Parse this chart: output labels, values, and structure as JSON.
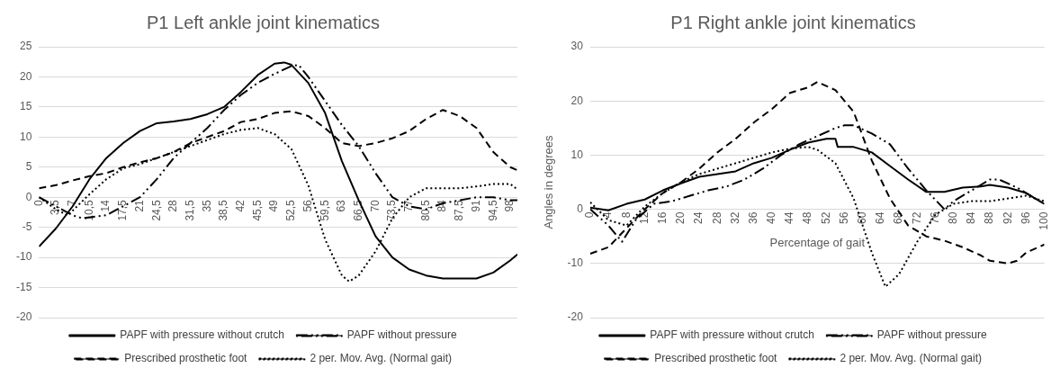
{
  "chart_data": [
    {
      "type": "line",
      "title": "P1 Left ankle joint kinematics",
      "xlim": [
        0,
        99.5
      ],
      "xticks": [
        0,
        {
          "value": 3.5,
          "label": "3,5"
        },
        7,
        {
          "value": 10.5,
          "label": "10,5"
        },
        14,
        {
          "value": 17.5,
          "label": "17,5"
        },
        21,
        {
          "value": 24.5,
          "label": "24,5"
        },
        28,
        {
          "value": 31.5,
          "label": "31,5"
        },
        35,
        {
          "value": 38.5,
          "label": "38,5"
        },
        42,
        {
          "value": 45.5,
          "label": "45,5"
        },
        49,
        {
          "value": 52.5,
          "label": "52,5"
        },
        56,
        {
          "value": 59.5,
          "label": "59,5"
        },
        63,
        {
          "value": 66.5,
          "label": "66,5"
        },
        70,
        {
          "value": 73.5,
          "label": "73,5"
        },
        77,
        {
          "value": 80.5,
          "label": "80,5"
        },
        84,
        {
          "value": 87.5,
          "label": "87,5"
        },
        91,
        {
          "value": 94.5,
          "label": "94,5"
        },
        98
      ],
      "ylim": [
        -20,
        25
      ],
      "yticks": [
        -20,
        -15,
        -10,
        -5,
        0,
        5,
        10,
        15,
        20,
        25
      ],
      "grid": "y",
      "legend": "bottom",
      "marker": "none",
      "series": [
        {
          "name": "PAPF with pressure without crutch",
          "color": "#000000",
          "line_style": "solid",
          "x": [
            0,
            3.5,
            7,
            10.5,
            14,
            17.5,
            21,
            24.5,
            28,
            31.5,
            35,
            38.5,
            42,
            45.5,
            49,
            51,
            52.5,
            56,
            59.5,
            63,
            66.5,
            70,
            73.5,
            77,
            80.5,
            84,
            87.5,
            91,
            94.5,
            98,
            99.5
          ],
          "values": [
            -8.2,
            -5.2,
            -1.5,
            3,
            6.5,
            9,
            11,
            12.3,
            12.6,
            13,
            13.8,
            15,
            17.5,
            20.3,
            22.2,
            22.4,
            22,
            19,
            14,
            6,
            -0.5,
            -6.5,
            -10,
            -12,
            -13,
            -13.5,
            -13.5,
            -13.5,
            -12.5,
            -10.5,
            -9.5
          ]
        },
        {
          "name": "PAPF without pressure",
          "color": "#000000",
          "line_style": "dashdot",
          "x": [
            0,
            3.5,
            7,
            9,
            14,
            17.5,
            21,
            24.5,
            28,
            31.5,
            35,
            38.5,
            42,
            45.5,
            49,
            52.5,
            54,
            56,
            59.5,
            63,
            66.5,
            70,
            73.5,
            77,
            80.5,
            84,
            87.5,
            91,
            94.5,
            98,
            99.5
          ],
          "values": [
            0,
            -1.5,
            -3,
            -3.5,
            -3,
            -1.5,
            0,
            3,
            6.5,
            9,
            11.5,
            14.5,
            17,
            19,
            20.5,
            21.8,
            22,
            20,
            16,
            12,
            8.5,
            4,
            0,
            -1.5,
            -2,
            -1,
            -0.5,
            0,
            0,
            -0.5,
            -0.5
          ]
        },
        {
          "name": "Prescribed prosthetic foot",
          "color": "#000000",
          "line_style": "dashed",
          "x": [
            0,
            3.5,
            7,
            10.5,
            14,
            17.5,
            21,
            24.5,
            28,
            31.5,
            35,
            38.5,
            42,
            45.5,
            49,
            52.5,
            56,
            59.5,
            63,
            66.5,
            70,
            73.5,
            77,
            80.5,
            84,
            87.5,
            91,
            94.5,
            98,
            99.5
          ],
          "values": [
            1.5,
            2,
            2.8,
            3.5,
            4,
            5,
            5.8,
            6.5,
            7.5,
            9,
            10,
            11,
            12.5,
            13,
            14,
            14.3,
            13.5,
            11.5,
            9,
            8.5,
            9,
            9.8,
            11,
            13,
            14.5,
            13.5,
            11.5,
            7.5,
            5,
            4.5
          ]
        },
        {
          "name": "2 per. Mov. Avg. (Normal gait)",
          "color": "#000000",
          "line_style": "dotted",
          "x": [
            0,
            3.5,
            6,
            10.5,
            14,
            17.5,
            21,
            24.5,
            28,
            31.5,
            35,
            38.5,
            42,
            45.5,
            49,
            52.5,
            56,
            59.5,
            63,
            64.5,
            66.5,
            70,
            73.5,
            77,
            80.5,
            84,
            87.5,
            91,
            94.5,
            98,
            99.5
          ],
          "values": [
            0,
            -2,
            -3,
            0.5,
            3,
            4.8,
            5.5,
            6.5,
            7.5,
            8.5,
            9.5,
            10.5,
            11.2,
            11.5,
            10.5,
            8,
            2,
            -7,
            -13,
            -14,
            -13,
            -9,
            -3.5,
            0,
            1.5,
            1.5,
            1.5,
            1.8,
            2.2,
            2.2,
            1.3
          ]
        }
      ]
    },
    {
      "type": "line",
      "title": "P1 Right ankle joint kinematics",
      "xlabel": "Percentage of gait",
      "ylabel": "Angles in degrees",
      "xlim": [
        0,
        100
      ],
      "xticks": [
        0,
        4,
        8,
        12,
        16,
        20,
        24,
        28,
        32,
        36,
        40,
        44,
        48,
        52,
        56,
        60,
        64,
        68,
        72,
        76,
        80,
        84,
        88,
        92,
        96,
        100
      ],
      "ylim": [
        -20,
        30
      ],
      "yticks": [
        -20,
        -10,
        0,
        10,
        20,
        30
      ],
      "grid": "y",
      "legend": "bottom",
      "marker": "none",
      "series": [
        {
          "name": "PAPF with pressure without crutch",
          "color": "#000000",
          "line_style": "solid",
          "x": [
            0,
            4,
            8,
            12,
            16,
            20,
            24,
            28,
            32,
            36,
            40,
            44,
            48,
            52,
            54,
            54.5,
            58,
            62,
            66,
            70,
            74,
            78,
            82,
            86,
            88,
            92,
            96,
            100
          ],
          "values": [
            0.3,
            -0.2,
            1,
            1.8,
            3.5,
            4.8,
            6,
            6.5,
            7,
            8.5,
            9.5,
            11,
            12.3,
            13,
            13,
            11.5,
            11.5,
            10.5,
            8,
            5.5,
            3.2,
            3.2,
            4,
            4.2,
            4.5,
            4,
            3,
            1
          ]
        },
        {
          "name": "PAPF without pressure",
          "color": "#000000",
          "line_style": "dashdot",
          "x": [
            0,
            4,
            7,
            10,
            14,
            18,
            22,
            26,
            30,
            34,
            38,
            42,
            46,
            50,
            54,
            56,
            58,
            62,
            66,
            70,
            74,
            78,
            80,
            84,
            88,
            90,
            94,
            96,
            100
          ],
          "values": [
            0,
            -3,
            -6,
            -2,
            1,
            1.5,
            2.5,
            3.5,
            4.2,
            5.5,
            7.5,
            10,
            12,
            13.5,
            15,
            15.5,
            15.5,
            14,
            12,
            7.5,
            3.5,
            0,
            1.5,
            3.5,
            5.5,
            5.5,
            4,
            3,
            1
          ]
        },
        {
          "name": "Prescribed prosthetic foot",
          "color": "#000000",
          "line_style": "dashed",
          "x": [
            0,
            4,
            8,
            12,
            16,
            20,
            24,
            28,
            32,
            36,
            40,
            44,
            48,
            50,
            54,
            58,
            62,
            66,
            70,
            74,
            78,
            82,
            86,
            88,
            92,
            94,
            96,
            100
          ],
          "values": [
            -8.2,
            -7,
            -3.5,
            0,
            3,
            5,
            7.5,
            10.5,
            13,
            16,
            18.5,
            21.5,
            22.5,
            23.5,
            22,
            18,
            9,
            2,
            -3,
            -5,
            -5.8,
            -7,
            -8.5,
            -9.5,
            -10,
            -9.5,
            -8,
            -6.5
          ]
        },
        {
          "name": "2 per. Mov. Avg. (Normal gait)",
          "color": "#000000",
          "line_style": "dotted",
          "x": [
            0,
            4,
            8,
            12,
            16,
            20,
            24,
            28,
            32,
            36,
            40,
            44,
            48,
            50,
            54,
            58,
            62,
            65,
            68,
            72,
            76,
            80,
            84,
            88,
            92,
            96,
            100
          ],
          "values": [
            1.3,
            -2,
            -3,
            0.5,
            3,
            5,
            6.5,
            7.5,
            8.5,
            9.5,
            10.5,
            11.2,
            11.5,
            11,
            8.5,
            2,
            -8,
            -14.3,
            -12,
            -6,
            -1,
            1,
            1.5,
            1.5,
            2,
            2.5,
            1.5
          ]
        }
      ]
    }
  ]
}
